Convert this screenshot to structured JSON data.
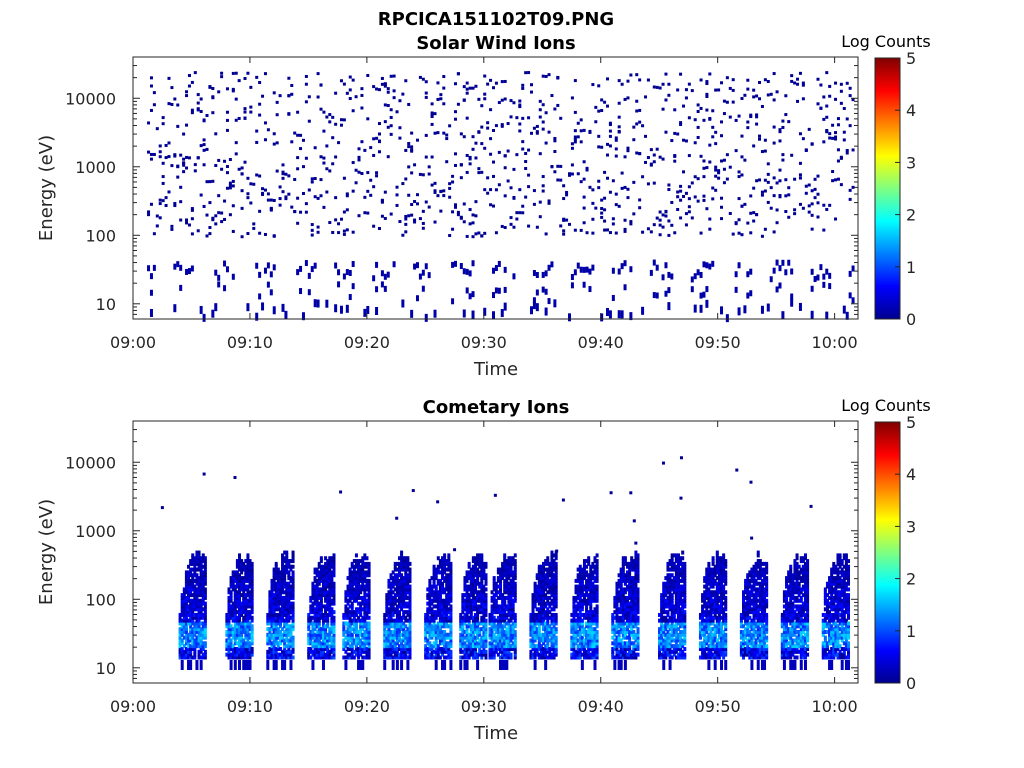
{
  "figure": {
    "title": "RPCICA151102T09.PNG"
  },
  "chart_data": [
    {
      "type": "heatmap",
      "title": "Solar Wind Ions",
      "xlabel": "Time",
      "ylabel": "Energy (eV)",
      "y_scale": "log",
      "xlim": [
        "09:00",
        "10:02"
      ],
      "ylim": [
        6,
        40000
      ],
      "x_ticks": [
        "09:00",
        "09:10",
        "09:20",
        "09:30",
        "09:40",
        "09:50",
        "10:00"
      ],
      "y_ticks": [
        "10",
        "100",
        "1000",
        "10000"
      ],
      "colorbar": {
        "label": "Log Counts",
        "min": 0,
        "max": 5,
        "ticks": [
          "0",
          "1",
          "2",
          "3",
          "4",
          "5"
        ],
        "colormap": "jet"
      },
      "description_values": {
        "background_log_counts": 0.1,
        "low_energy_band_ev": [
          25,
          45
        ],
        "low_energy_band_log_counts": 0.2,
        "burst_period_minutes": 3.4
      }
    },
    {
      "type": "heatmap",
      "title": "Cometary Ions",
      "xlabel": "Time",
      "ylabel": "Energy (eV)",
      "y_scale": "log",
      "xlim": [
        "09:00",
        "10:02"
      ],
      "ylim": [
        6,
        40000
      ],
      "x_ticks": [
        "09:00",
        "09:10",
        "09:20",
        "09:30",
        "09:40",
        "09:50",
        "10:00"
      ],
      "y_ticks": [
        "10",
        "100",
        "1000",
        "10000"
      ],
      "colorbar": {
        "label": "Log Counts",
        "min": 0,
        "max": 5,
        "ticks": [
          "0",
          "1",
          "2",
          "3",
          "4",
          "5"
        ],
        "colormap": "jet"
      },
      "bursts_minutes": [
        5.5,
        9.5,
        13,
        16.5,
        19.5,
        23,
        26.5,
        29.5,
        32,
        35.5,
        39,
        42.5,
        46.5,
        50,
        53.5,
        57,
        60.5
      ],
      "burst_peak_log_counts": 1.7,
      "burst_core_energy_ev": [
        20,
        45
      ],
      "burst_max_energy_ev": 500
    }
  ]
}
